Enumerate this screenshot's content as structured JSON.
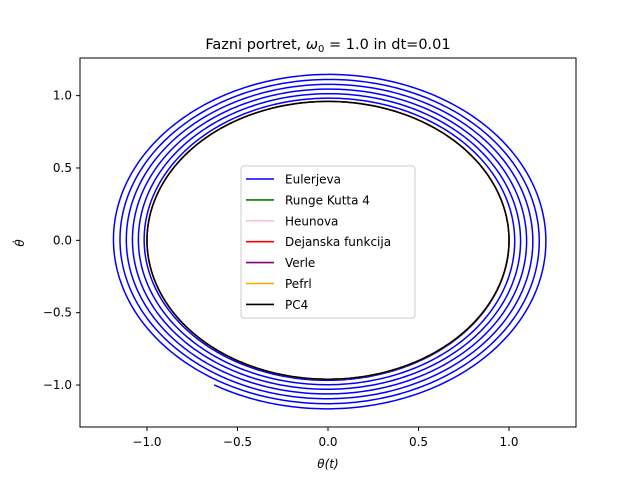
{
  "chart_data": {
    "type": "line",
    "title": "Fazni portret, ω₀ = 1.0 in dt=0.01",
    "xlabel": "θ(t)",
    "ylabel": "θ̇",
    "xlim": [
      -1.37,
      1.37
    ],
    "ylim": [
      -1.29,
      1.26
    ],
    "xticks": [
      -1.0,
      -0.5,
      0.0,
      0.5,
      1.0
    ],
    "xtick_labels": [
      "−1.0",
      "−0.5",
      "0.0",
      "0.5",
      "1.0"
    ],
    "yticks": [
      -1.0,
      -0.5,
      0.0,
      0.5,
      1.0
    ],
    "ytick_labels": [
      "−1.0",
      "−0.5",
      "0.0",
      "0.5",
      "1.0"
    ],
    "grid": false,
    "legend_position": "center",
    "series": [
      {
        "name": "Eulerjeva",
        "color": "#0000ff",
        "kind": "spiral",
        "theta_start": 1.0,
        "theta_end_max": 1.25,
        "omega_end": -1.17,
        "end_point": [
          -0.61,
          -1.01
        ]
      },
      {
        "name": "Runge Kutta 4",
        "color": "#008000",
        "kind": "ellipse",
        "theta_amp": 1.0,
        "omega_amp": 0.96
      },
      {
        "name": "Heunova",
        "color": "#ffc0cb",
        "kind": "ellipse",
        "theta_amp": 1.0,
        "omega_amp": 0.96
      },
      {
        "name": "Dejanska funkcija",
        "color": "#ff0000",
        "kind": "ellipse",
        "theta_amp": 1.0,
        "omega_amp": 0.96
      },
      {
        "name": "Verle",
        "color": "#800080",
        "kind": "ellipse",
        "theta_amp": 1.0,
        "omega_amp": 0.96
      },
      {
        "name": "Pefrl",
        "color": "#ffa500",
        "kind": "ellipse",
        "theta_amp": 1.0,
        "omega_amp": 0.96
      },
      {
        "name": "PC4",
        "color": "#000000",
        "kind": "ellipse",
        "theta_amp": 1.0,
        "omega_amp": 0.96
      }
    ]
  }
}
